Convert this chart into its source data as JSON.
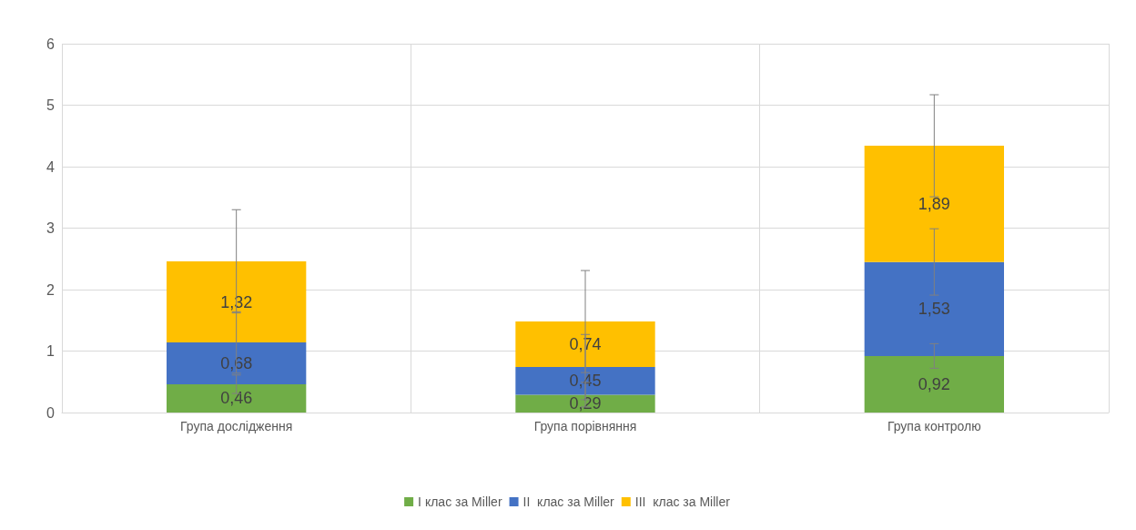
{
  "chart_data": {
    "type": "bar",
    "stacked": true,
    "categories": [
      "Група дослідження",
      "Група порівняння",
      "Група контролю"
    ],
    "series": [
      {
        "name": "I клас за Miller",
        "color": "#70ad47",
        "values": [
          0.46,
          0.29,
          0.92
        ],
        "value_labels": [
          "0,46",
          "0,29",
          "0,92"
        ],
        "errors": [
          0.15,
          0.2,
          0.2
        ]
      },
      {
        "name": "II  клас за Miller",
        "color": "#4472c4",
        "values": [
          0.68,
          0.45,
          1.53
        ],
        "value_labels": [
          "0,68",
          "0,45",
          "1,53"
        ],
        "errors": [
          0.5,
          0.53,
          0.54
        ]
      },
      {
        "name": "III  клас за Miller",
        "color": "#ffc000",
        "values": [
          1.32,
          0.74,
          1.89
        ],
        "value_labels": [
          "1,32",
          "0,74",
          "1,89"
        ],
        "errors": [
          0.84,
          0.83,
          0.83
        ]
      }
    ],
    "ylim": [
      0,
      6
    ],
    "yticks": [
      0,
      1,
      2,
      3,
      4,
      5,
      6
    ],
    "grid": true,
    "legend": "bottom"
  }
}
